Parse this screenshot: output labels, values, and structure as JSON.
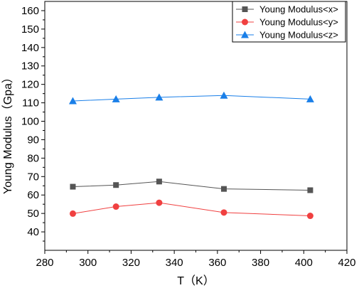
{
  "chart_data": {
    "type": "line",
    "title": "",
    "xlabel": "T（K）",
    "ylabel": "Young Modulus（Gpa）",
    "xlim": [
      280,
      420
    ],
    "ylim": [
      30,
      165
    ],
    "xticks": [
      280,
      300,
      320,
      340,
      360,
      380,
      400,
      420
    ],
    "yticks": [
      40,
      50,
      60,
      70,
      80,
      90,
      100,
      110,
      120,
      130,
      140,
      150,
      160
    ],
    "grid": false,
    "legend_position": "top-right",
    "x": [
      293,
      313,
      333,
      363,
      403
    ],
    "series": [
      {
        "name": "Young Modulus<x>",
        "values": [
          64.5,
          65.4,
          67.3,
          63.3,
          62.6
        ],
        "color": "#555555",
        "marker": "square"
      },
      {
        "name": "Young Modulus<y>",
        "values": [
          49.9,
          53.7,
          55.8,
          50.5,
          48.7
        ],
        "color": "#f04040",
        "marker": "circle"
      },
      {
        "name": "Young Modulus<z>",
        "values": [
          111.0,
          112.0,
          113.0,
          114.0,
          112.0
        ],
        "color": "#1a7fe8",
        "marker": "triangle"
      }
    ]
  }
}
